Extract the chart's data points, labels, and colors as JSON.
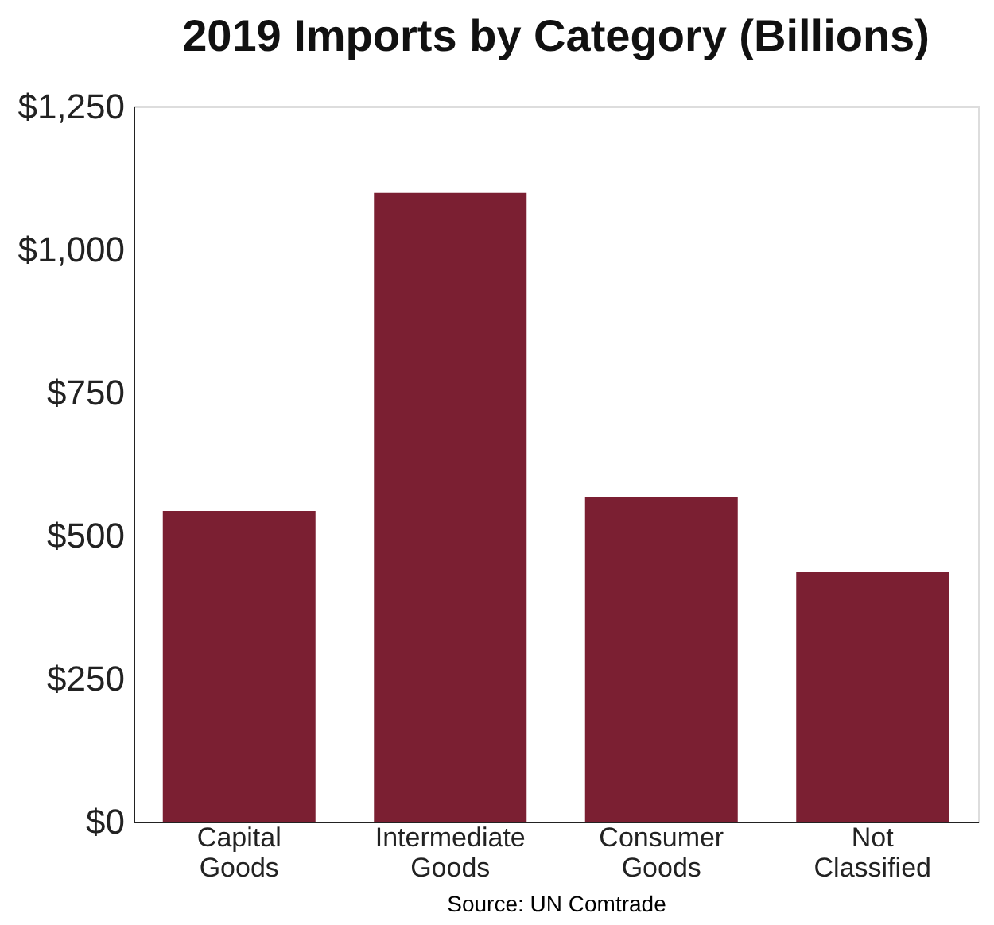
{
  "chart_data": {
    "type": "bar",
    "title": "2019 Imports by Category (Billions)",
    "categories": [
      "Capital Goods",
      "Intermediate Goods",
      "Consumer Goods",
      "Not Classified"
    ],
    "values": [
      543,
      1099,
      567,
      436
    ],
    "color": "#7b1f32",
    "ylim": [
      0,
      1250
    ],
    "yticks": [
      {
        "value": 0,
        "label": "$0"
      },
      {
        "value": 250,
        "label": "$250"
      },
      {
        "value": 500,
        "label": "$500"
      },
      {
        "value": 750,
        "label": "$750"
      },
      {
        "value": 1000,
        "label": "$1,000"
      },
      {
        "value": 1250,
        "label": "$1,250"
      }
    ],
    "grid": false,
    "annotations": [
      "Source: UN Comtrade"
    ]
  }
}
